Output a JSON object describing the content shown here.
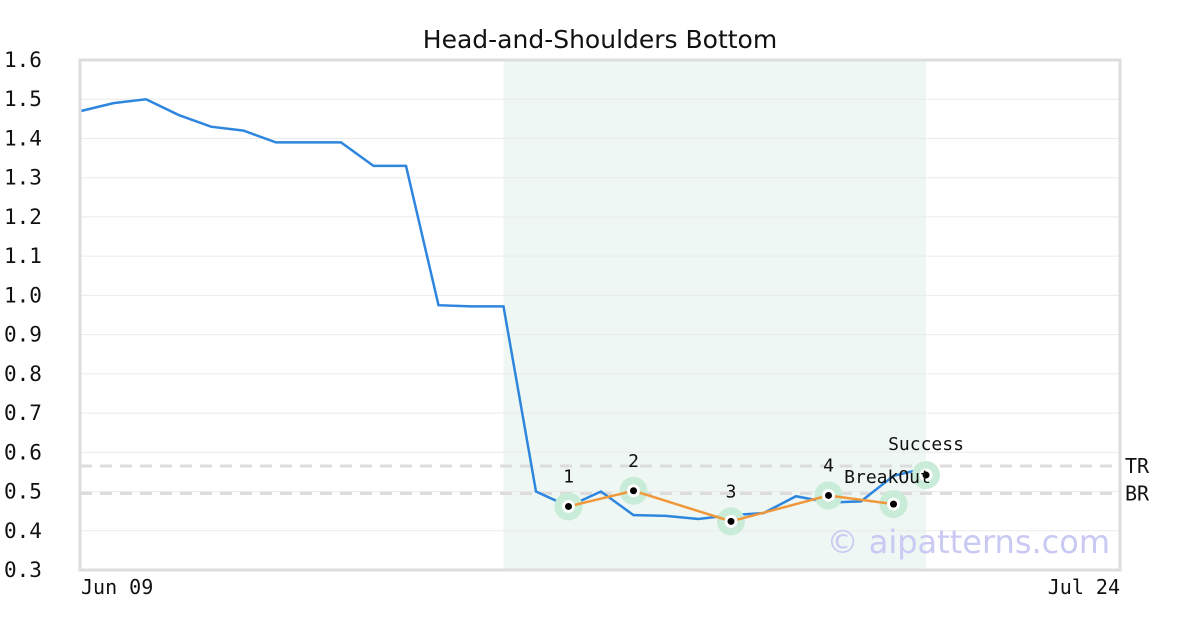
{
  "chart_data": {
    "type": "line",
    "title": "Head-and-Shoulders Bottom",
    "xlabel": "",
    "ylabel": "",
    "ylim": [
      0.3,
      1.6
    ],
    "yticks": [
      "0.3",
      "0.4",
      "0.5",
      "0.6",
      "0.7",
      "0.8",
      "0.9",
      "1.0",
      "1.1",
      "1.2",
      "1.3",
      "1.4",
      "1.5",
      "1.6"
    ],
    "x_tick_labels": [
      {
        "index": 0,
        "label": "Jun 09"
      },
      {
        "index": 32,
        "label": "Jul 24"
      }
    ],
    "grid": "horizontal",
    "series": [
      {
        "color": "#2e86de",
        "values": [
          1.47,
          1.49,
          1.5,
          1.46,
          1.43,
          1.42,
          1.39,
          1.39,
          1.39,
          1.33,
          1.33,
          0.975,
          0.972,
          0.972,
          0.5,
          0.462,
          0.5,
          0.44,
          0.438,
          0.43,
          0.44,
          0.445,
          0.488,
          0.472,
          0.475,
          0.54,
          0.56
        ]
      }
    ],
    "pattern_overlay": {
      "color": "#f0973a",
      "marker_color": "#000000",
      "highlight_color": "#c8ecd8",
      "points": [
        {
          "index": 15,
          "value": 0.462,
          "label": "1"
        },
        {
          "index": 17,
          "value": 0.502,
          "label": "2"
        },
        {
          "index": 20,
          "value": 0.424,
          "label": "3"
        },
        {
          "index": 23,
          "value": 0.49,
          "label": "4"
        },
        {
          "index": 25,
          "value": 0.468,
          "label": "BreakOut"
        },
        {
          "index": 26,
          "value": 0.542,
          "label": "Success"
        }
      ]
    },
    "highlight_region": {
      "start_index": 13,
      "end_index": 26,
      "color": "#eef7f3"
    },
    "levels": [
      {
        "label": "TR",
        "value": 0.565
      },
      {
        "label": "BR",
        "value": 0.495
      }
    ],
    "watermark": "© aipatterns.com"
  }
}
